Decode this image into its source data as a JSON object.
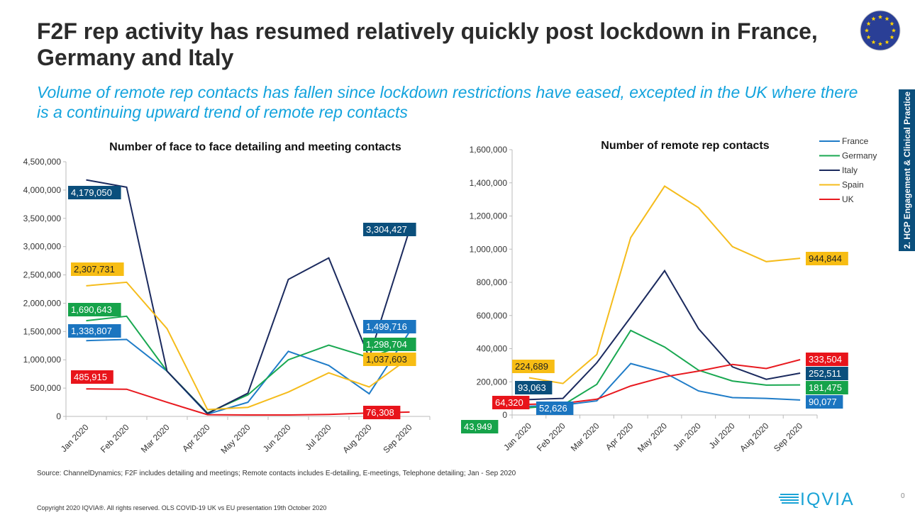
{
  "slide": {
    "title": "F2F rep activity has resumed relatively quickly post lockdown in France, Germany and Italy",
    "subtitle": "Volume of remote rep contacts has fallen since lockdown restrictions have eased, excepted in the UK where there is a continuing upward trend of remote rep contacts",
    "side_tab": "2. HCP Engagement & Clinical Practice",
    "source": "Source: ChannelDynamics; F2F includes detailing and meetings; Remote contacts includes E-detailing, E-meetings, Telephone detailing; Jan - Sep 2020",
    "copyright": "Copyright 2020 IQVIA®. All rights reserved. OLS COVID-19 UK vs EU presentation 19th October 2020",
    "page_number": "0",
    "logo_text": "IQVIA",
    "icons": {
      "flag": "eu-flag-icon",
      "logo": "iqvia-logo"
    }
  },
  "colors": {
    "France": "#1f7cc8",
    "Germany": "#19a851",
    "Italy": "#1b2a5e",
    "Spain": "#f5bc1c",
    "UK": "#e8191f",
    "label_France": "#1b75c0",
    "label_Germany": "#16a34a",
    "label_Italy": "#0b4f7c",
    "label_Spain": "#f7bd14",
    "label_UK": "#e8141b",
    "subtitle": "#13a3dd",
    "side_tab": "#0b4f7c"
  },
  "chart_data": [
    {
      "type": "line",
      "title": "Number of face to face detailing and meeting contacts",
      "categories": [
        "Jan 2020",
        "Feb 2020",
        "Mar 2020",
        "Apr 2020",
        "May 2020",
        "Jun 2020",
        "Jul 2020",
        "Aug 2020",
        "Sep 2020"
      ],
      "ylim": [
        0,
        4500000
      ],
      "yticks": [
        "0",
        "500,000",
        "1,000,000",
        "1,500,000",
        "2,000,000",
        "2,500,000",
        "3,000,000",
        "3,500,000",
        "4,000,000",
        "4,500,000"
      ],
      "grid": false,
      "series": [
        {
          "name": "France",
          "values": [
            1338807,
            1360000,
            800000,
            40000,
            250000,
            1150000,
            900000,
            400000,
            1499716
          ],
          "labels": [
            "1,338,807",
            "1,499,716"
          ]
        },
        {
          "name": "Germany",
          "values": [
            1690643,
            1770000,
            800000,
            60000,
            380000,
            1000000,
            1260000,
            1040000,
            1298704
          ],
          "labels": [
            "1,690,643",
            "1,298,704"
          ]
        },
        {
          "name": "Italy",
          "values": [
            4179050,
            4050000,
            800000,
            50000,
            410000,
            2420000,
            2800000,
            1040000,
            3304427
          ],
          "labels": [
            "4,179,050",
            "3,304,427"
          ]
        },
        {
          "name": "Spain",
          "values": [
            2307731,
            2370000,
            1550000,
            120000,
            160000,
            430000,
            770000,
            520000,
            1037603
          ],
          "labels": [
            "2,307,731",
            "1,037,603"
          ]
        },
        {
          "name": "UK",
          "values": [
            485915,
            480000,
            250000,
            30000,
            25000,
            25000,
            35000,
            60000,
            76308
          ],
          "labels": [
            "485,915",
            "76,308"
          ]
        }
      ]
    },
    {
      "type": "line",
      "title": "Number of remote rep contacts",
      "categories": [
        "Jan 2020",
        "Feb 2020",
        "Mar 2020",
        "Apr 2020",
        "May 2020",
        "Jun 2020",
        "Jul 2020",
        "Aug 2020",
        "Sep 2020"
      ],
      "ylim": [
        0,
        1600000
      ],
      "yticks": [
        "0",
        "200,000",
        "400,000",
        "600,000",
        "800,000",
        "1,000,000",
        "1,200,000",
        "1,400,000",
        "1,600,000"
      ],
      "grid": false,
      "legend": "top-right",
      "series": [
        {
          "name": "France",
          "values": [
            52626,
            60000,
            85000,
            310000,
            255000,
            145000,
            105000,
            100000,
            90077
          ],
          "labels": [
            "52,626",
            "90,077"
          ]
        },
        {
          "name": "Germany",
          "values": [
            43949,
            60000,
            185000,
            510000,
            410000,
            270000,
            205000,
            180000,
            181475
          ],
          "labels": [
            "43,949",
            "181,475"
          ]
        },
        {
          "name": "Italy",
          "values": [
            93063,
            100000,
            315000,
            590000,
            870000,
            520000,
            290000,
            215000,
            252511
          ],
          "labels": [
            "93,063",
            "252,511"
          ]
        },
        {
          "name": "Spain",
          "values": [
            224689,
            190000,
            365000,
            1070000,
            1380000,
            1250000,
            1015000,
            925000,
            944844
          ],
          "labels": [
            "224,689",
            "944,844"
          ]
        },
        {
          "name": "UK",
          "values": [
            64320,
            70000,
            95000,
            175000,
            230000,
            265000,
            305000,
            280000,
            333504
          ],
          "labels": [
            "64,320",
            "333,504"
          ]
        }
      ]
    }
  ]
}
